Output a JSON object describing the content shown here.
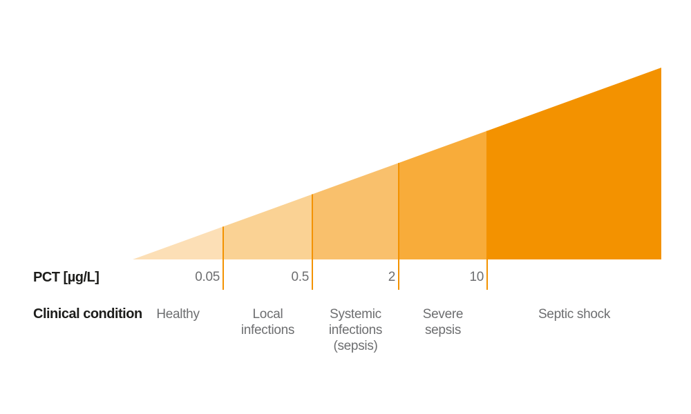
{
  "diagram": {
    "axis_rows": {
      "pct": "PCT [µg/L]",
      "condition": "Clinical condition"
    },
    "zones": [
      {
        "name": "healthy",
        "label_lines": [
          "Healthy"
        ],
        "color": "#fcdfb6"
      },
      {
        "name": "local-infections",
        "label_lines": [
          "Local",
          "infections"
        ],
        "color": "#fad294"
      },
      {
        "name": "systemic-infections",
        "label_lines": [
          "Systemic",
          "infections",
          "(sepsis)"
        ],
        "color": "#f9c06c"
      },
      {
        "name": "severe-sepsis",
        "label_lines": [
          "Severe",
          "sepsis"
        ],
        "color": "#f8ac3a"
      },
      {
        "name": "septic-shock",
        "label_lines": [
          "Septic shock"
        ],
        "color": "#f39200"
      }
    ],
    "thresholds": [
      "0.05",
      "0.5",
      "2",
      "10"
    ],
    "colors": {
      "divider": "#f39200",
      "heading_text": "#1d1d1b",
      "value_text": "#6d6e70",
      "background": "#ffffff"
    }
  }
}
